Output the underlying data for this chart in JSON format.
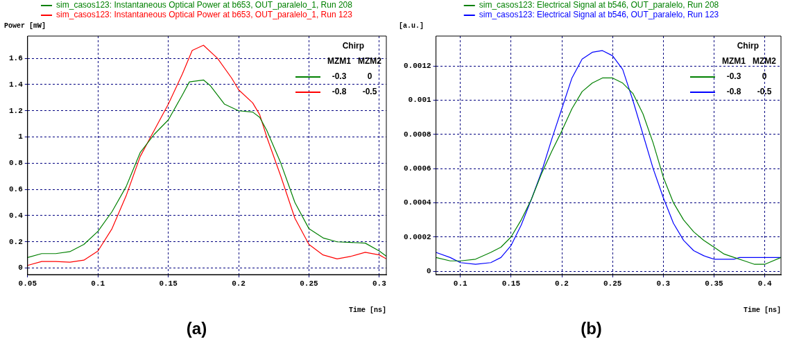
{
  "chart_data": [
    {
      "type": "line",
      "title": "(a)",
      "xlabel": "Time [ns]",
      "ylabel": "Power [mW]",
      "xlim": [
        0.05,
        0.305
      ],
      "xticks": [
        0.05,
        0.1,
        0.15,
        0.2,
        0.25,
        0.3
      ],
      "ylim": [
        -0.05,
        1.77
      ],
      "yticks": [
        0,
        0.2,
        0.4,
        0.6,
        0.8,
        1,
        1.2,
        1.4,
        1.6
      ],
      "grid": true,
      "legend": "top",
      "marker": "none",
      "line_style": "solid",
      "annotations": [
        "Chirp",
        "MZM1",
        "MZM2",
        "-0.3",
        "0",
        "-0.8",
        "-0.5"
      ],
      "series": [
        {
          "name": "sim_casos123: Instantaneous Optical Power at b653, OUT_paralelo_1, Run 208",
          "color": "#008000",
          "x": [
            0.05,
            0.06,
            0.07,
            0.08,
            0.09,
            0.1,
            0.11,
            0.12,
            0.13,
            0.14,
            0.15,
            0.16,
            0.165,
            0.175,
            0.18,
            0.19,
            0.2,
            0.21,
            0.215,
            0.22,
            0.23,
            0.24,
            0.25,
            0.26,
            0.27,
            0.28,
            0.29,
            0.3,
            0.305
          ],
          "values": [
            0.08,
            0.11,
            0.11,
            0.125,
            0.18,
            0.28,
            0.43,
            0.62,
            0.88,
            1.02,
            1.13,
            1.32,
            1.42,
            1.435,
            1.39,
            1.25,
            1.2,
            1.19,
            1.15,
            1.05,
            0.8,
            0.5,
            0.3,
            0.23,
            0.2,
            0.195,
            0.19,
            0.13,
            0.09
          ]
        },
        {
          "name": "sim_casos123: Instantaneous Optical Power at b653, OUT_paralelo_1, Run 123",
          "color": "#ff0000",
          "x": [
            0.05,
            0.06,
            0.07,
            0.08,
            0.09,
            0.1,
            0.11,
            0.12,
            0.13,
            0.14,
            0.15,
            0.16,
            0.167,
            0.175,
            0.185,
            0.195,
            0.2,
            0.21,
            0.215,
            0.22,
            0.23,
            0.24,
            0.25,
            0.26,
            0.27,
            0.28,
            0.29,
            0.3,
            0.305
          ],
          "values": [
            0.02,
            0.05,
            0.05,
            0.045,
            0.06,
            0.13,
            0.3,
            0.55,
            0.85,
            1.05,
            1.25,
            1.48,
            1.66,
            1.7,
            1.6,
            1.45,
            1.36,
            1.26,
            1.17,
            1.0,
            0.7,
            0.38,
            0.18,
            0.1,
            0.07,
            0.09,
            0.12,
            0.1,
            0.07
          ]
        }
      ]
    },
    {
      "type": "line",
      "title": "(b)",
      "xlabel": "Time [ns]",
      "ylabel": "[a.u.]",
      "xlim": [
        0.076,
        0.416
      ],
      "xticks": [
        0.1,
        0.15,
        0.2,
        0.25,
        0.3,
        0.35,
        0.4
      ],
      "ylim": [
        -2e-05,
        0.001375
      ],
      "yticks": [
        0,
        0.0002,
        0.0004,
        0.0006,
        0.0008,
        0.001,
        0.0012
      ],
      "grid": true,
      "legend": "top",
      "marker": "none",
      "line_style": "solid",
      "annotations": [
        "Chirp",
        "MZM1",
        "MZM2",
        "-0.3",
        "0",
        "-0.8",
        "-0.5"
      ],
      "series": [
        {
          "name": "sim_casos123: Electrical Signal at b546, OUT_paralelo, Run 208",
          "color": "#008000",
          "x": [
            0.076,
            0.09,
            0.1,
            0.115,
            0.13,
            0.14,
            0.15,
            0.16,
            0.17,
            0.18,
            0.19,
            0.2,
            0.21,
            0.22,
            0.23,
            0.24,
            0.25,
            0.26,
            0.27,
            0.28,
            0.29,
            0.3,
            0.31,
            0.32,
            0.33,
            0.34,
            0.35,
            0.36,
            0.37,
            0.38,
            0.39,
            0.4,
            0.416
          ],
          "values": [
            8e-05,
            6e-05,
            6e-05,
            7e-05,
            0.00011,
            0.00014,
            0.0002,
            0.0003,
            0.00042,
            0.00057,
            0.0007,
            0.00082,
            0.00095,
            0.00105,
            0.0011,
            0.00113,
            0.00113,
            0.0011,
            0.00104,
            0.00092,
            0.00075,
            0.00055,
            0.0004,
            0.0003,
            0.00023,
            0.00018,
            0.00014,
            0.0001,
            8e-05,
            6e-05,
            4e-05,
            4e-05,
            8e-05
          ]
        },
        {
          "name": "sim_casos123: Electrical Signal at b546, OUT_paralelo, Run 123",
          "color": "#0000ff",
          "x": [
            0.076,
            0.09,
            0.1,
            0.115,
            0.13,
            0.14,
            0.15,
            0.16,
            0.17,
            0.18,
            0.19,
            0.2,
            0.21,
            0.22,
            0.23,
            0.24,
            0.25,
            0.26,
            0.27,
            0.28,
            0.29,
            0.3,
            0.31,
            0.32,
            0.33,
            0.34,
            0.345,
            0.35,
            0.37,
            0.375,
            0.416
          ],
          "values": [
            0.00011,
            8e-05,
            5e-05,
            4e-05,
            5e-05,
            8e-05,
            0.00015,
            0.00027,
            0.00042,
            0.00058,
            0.00077,
            0.00095,
            0.00113,
            0.00124,
            0.00128,
            0.00129,
            0.00126,
            0.00118,
            0.001,
            0.0008,
            0.0006,
            0.00043,
            0.00028,
            0.00018,
            0.00012,
            9e-05,
            8e-05,
            7e-05,
            7e-05,
            8e-05,
            8e-05
          ]
        }
      ]
    }
  ]
}
